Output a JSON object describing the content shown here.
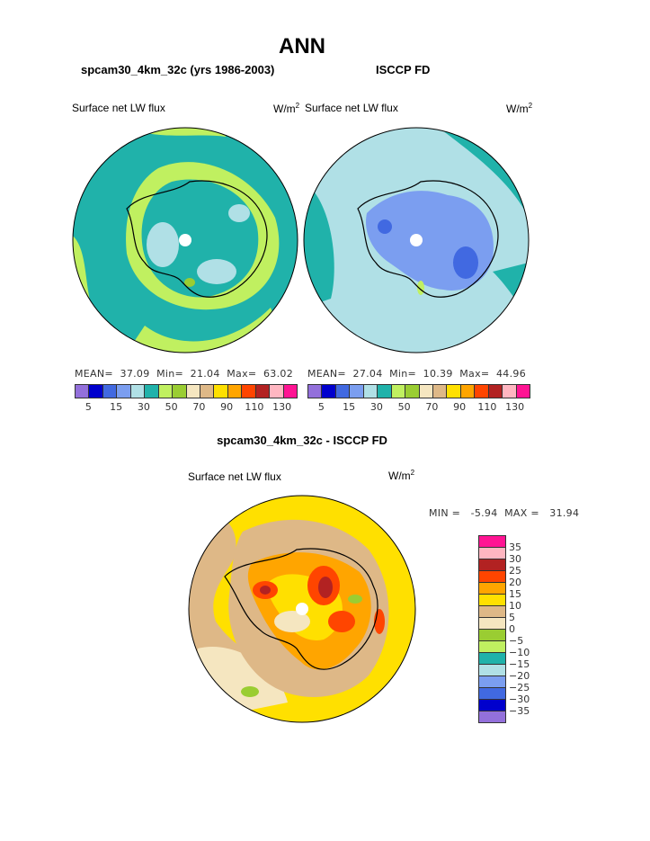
{
  "title": "ANN",
  "panels": [
    {
      "subtitle": "spcam30_4km_32c (yrs 1986-2003)",
      "left_label": "Surface net LW flux",
      "units": "W/m",
      "units_sup": "2",
      "stats": {
        "mean_label": "MEAN=",
        "mean": "37.09",
        "min_label": "Min=",
        "min": "21.04",
        "max_label": "Max=",
        "max": "63.02"
      }
    },
    {
      "subtitle": "ISCCP FD",
      "left_label": "Surface net LW flux",
      "units": "W/m",
      "units_sup": "2",
      "stats": {
        "mean_label": "MEAN=",
        "mean": "27.04",
        "min_label": "Min=",
        "min": "10.39",
        "max_label": "Max=",
        "max": "44.96"
      }
    }
  ],
  "colorbar": {
    "colors": [
      "#9370DB",
      "#0000CD",
      "#4169E1",
      "#7B9EF0",
      "#B0E0E6",
      "#20B2AA",
      "#C0F060",
      "#9ACD32",
      "#F5E6C0",
      "#DEB887",
      "#FFE000",
      "#FFA500",
      "#FF4500",
      "#B22222",
      "#FFB6C1",
      "#FF1493"
    ],
    "labels": [
      "5",
      "15",
      "30",
      "50",
      "70",
      "90",
      "110",
      "130"
    ]
  },
  "diff": {
    "title": "spcam30_4km_32c - ISCCP FD",
    "left_label": "Surface net LW flux",
    "units": "W/m",
    "units_sup": "2",
    "minmax": "MIN =   -5.94  MAX =   31.94",
    "colorbar_labels": [
      "35",
      "30",
      "25",
      "20",
      "15",
      "10",
      "5",
      "0",
      "−5",
      "−10",
      "−15",
      "−20",
      "−25",
      "−30",
      "−35"
    ]
  }
}
